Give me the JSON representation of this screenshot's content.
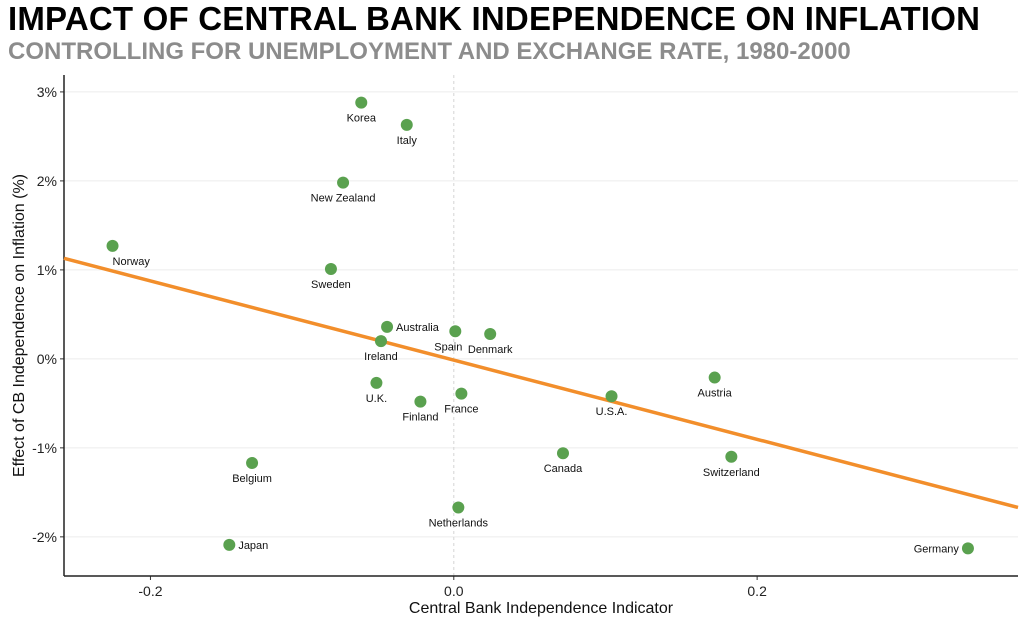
{
  "chart_data": {
    "type": "scatter",
    "title": "IMPACT OF CENTRAL BANK INDEPENDENCE ON INFLATION",
    "subtitle": "CONTROLLING FOR UNEMPLOYMENT AND EXCHANGE RATE, 1980-2000",
    "xlabel": "Central Bank Independence Indicator",
    "ylabel": "Effect of CB Independence on Inflation (%)",
    "xlim": [
      -0.257,
      0.372
    ],
    "ylim": [
      -2.44,
      3.19
    ],
    "xticks": [
      {
        "value": -0.2,
        "label": "-0.2"
      },
      {
        "value": 0.0,
        "label": "0.0"
      },
      {
        "value": 0.2,
        "label": "0.2"
      }
    ],
    "yticks": [
      {
        "value": 3,
        "label": "3%"
      },
      {
        "value": 2,
        "label": "2%"
      },
      {
        "value": 1,
        "label": "1%"
      },
      {
        "value": 0,
        "label": "0%"
      },
      {
        "value": -1,
        "label": "-1%"
      },
      {
        "value": -2,
        "label": "-2%"
      }
    ],
    "grid": "horizontal",
    "point_color": "#5aa14f",
    "line_color": "#f28e2b",
    "points": [
      {
        "label": "Korea",
        "x": -0.061,
        "y": 2.88,
        "pos": "below"
      },
      {
        "label": "Italy",
        "x": -0.031,
        "y": 2.63,
        "pos": "below"
      },
      {
        "label": "New Zealand",
        "x": -0.073,
        "y": 1.98,
        "pos": "below"
      },
      {
        "label": "Norway",
        "x": -0.225,
        "y": 1.27,
        "pos": "belowright"
      },
      {
        "label": "Sweden",
        "x": -0.081,
        "y": 1.01,
        "pos": "below"
      },
      {
        "label": "Australia",
        "x": -0.044,
        "y": 0.36,
        "pos": "right"
      },
      {
        "label": "Ireland",
        "x": -0.048,
        "y": 0.2,
        "pos": "below"
      },
      {
        "label": "Spain",
        "x": 0.001,
        "y": 0.31,
        "pos": "belowleft"
      },
      {
        "label": "Denmark",
        "x": 0.024,
        "y": 0.28,
        "pos": "below"
      },
      {
        "label": "U.K.",
        "x": -0.051,
        "y": -0.27,
        "pos": "below"
      },
      {
        "label": "Finland",
        "x": -0.022,
        "y": -0.48,
        "pos": "below"
      },
      {
        "label": "France",
        "x": 0.005,
        "y": -0.39,
        "pos": "below"
      },
      {
        "label": "U.S.A.",
        "x": 0.104,
        "y": -0.42,
        "pos": "below"
      },
      {
        "label": "Austria",
        "x": 0.172,
        "y": -0.21,
        "pos": "below"
      },
      {
        "label": "Canada",
        "x": 0.072,
        "y": -1.06,
        "pos": "below"
      },
      {
        "label": "Switzerland",
        "x": 0.183,
        "y": -1.1,
        "pos": "below"
      },
      {
        "label": "Belgium",
        "x": -0.133,
        "y": -1.17,
        "pos": "below"
      },
      {
        "label": "Netherlands",
        "x": 0.003,
        "y": -1.67,
        "pos": "below"
      },
      {
        "label": "Japan",
        "x": -0.148,
        "y": -2.09,
        "pos": "right"
      },
      {
        "label": "Germany",
        "x": 0.339,
        "y": -2.13,
        "pos": "left"
      }
    ],
    "trendline": {
      "x": [
        -0.257,
        0.372
      ],
      "y": [
        1.13,
        -1.67
      ]
    }
  }
}
